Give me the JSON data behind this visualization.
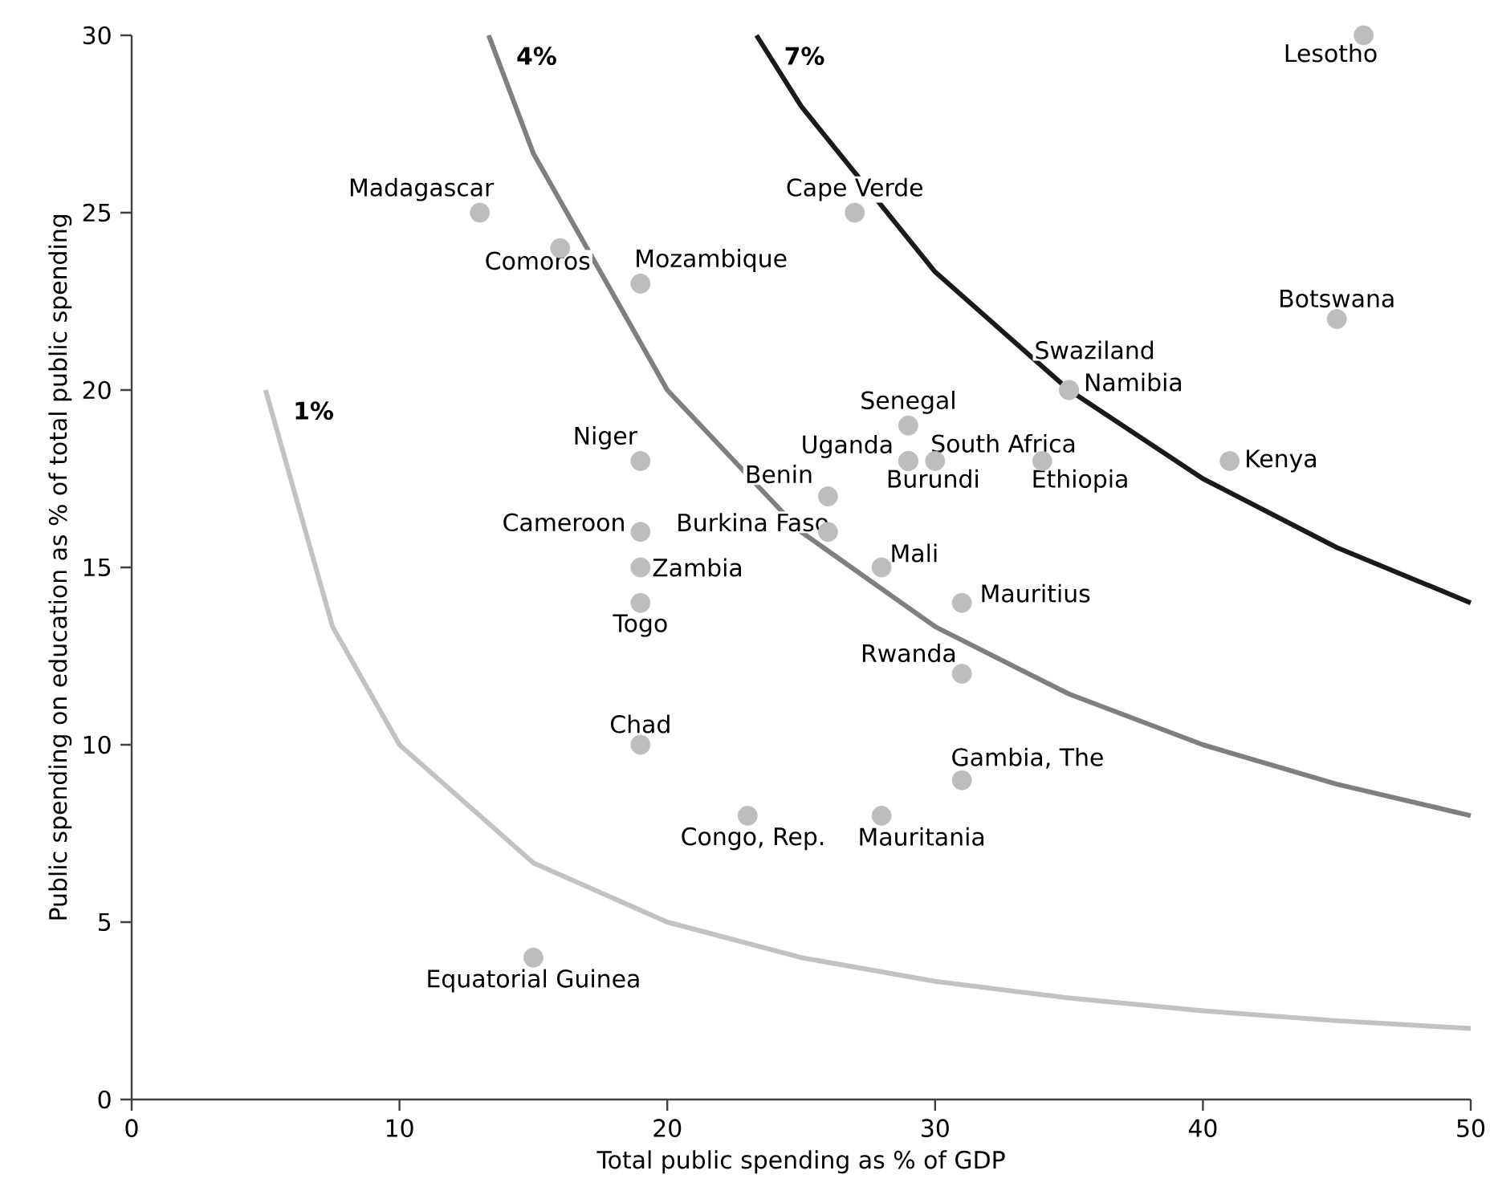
{
  "chart_data": {
    "type": "scatter",
    "xlabel": "Total public spending as % of GDP",
    "ylabel": "Public spending on education as % of total public spending",
    "xlim": [
      0,
      50
    ],
    "ylim": [
      0,
      30
    ],
    "xticks": [
      0,
      10,
      20,
      30,
      40,
      50
    ],
    "yticks": [
      0,
      5,
      10,
      15,
      20,
      25,
      30
    ],
    "series": [
      {
        "type": "line",
        "name": "1%",
        "color": "#c2c2c2",
        "marker": "none",
        "x": [
          5,
          7.5,
          10,
          15,
          20,
          25,
          30,
          35,
          40,
          45,
          50
        ],
        "values": [
          20,
          13.33,
          10,
          6.67,
          5,
          4,
          3.33,
          2.86,
          2.5,
          2.22,
          2
        ]
      },
      {
        "type": "line",
        "name": "4%",
        "color": "#7f7f7f",
        "marker": "none",
        "x": [
          13.33,
          15,
          20,
          25,
          30,
          35,
          40,
          45,
          50
        ],
        "values": [
          30,
          26.67,
          20,
          16,
          13.33,
          11.43,
          10,
          8.89,
          8
        ]
      },
      {
        "type": "line",
        "name": "7%",
        "color": "#1a1a1a",
        "marker": "none",
        "x": [
          23.33,
          25,
          30,
          35,
          40,
          45,
          50
        ],
        "values": [
          30,
          28,
          23.33,
          20,
          17.5,
          15.56,
          14
        ]
      },
      {
        "color": "#bdbdbd",
        "marker": "circle",
        "x": [
          46,
          13,
          27,
          16,
          19,
          45,
          35,
          35,
          29,
          29,
          30,
          29,
          34,
          41,
          19,
          26,
          19,
          26,
          19,
          28,
          19,
          31,
          31,
          19,
          31,
          23,
          28,
          15
        ],
        "values": [
          30,
          25,
          25,
          24,
          23,
          22,
          20,
          20,
          19,
          18,
          18,
          18,
          18,
          18,
          18,
          17,
          16,
          16,
          15,
          15,
          14,
          14,
          12,
          10,
          9,
          8,
          8,
          4
        ],
        "value_labels": [
          "Lesotho",
          "Madagascar",
          "Cape Verde",
          "Comoros",
          "Mozambique",
          "Botswana",
          "Swaziland",
          "Namibia",
          "Senegal",
          "Uganda",
          "South Africa",
          "Burundi",
          "Ethiopia",
          "Kenya",
          "Niger",
          "Benin",
          "Cameroon",
          "Burkina Faso",
          "Zambia",
          "Mali",
          "Togo",
          "Mauritius",
          "Rwanda",
          "Chad",
          "Gambia, The",
          "Congo, Rep.",
          "Mauritania",
          "Equatorial Guinea"
        ]
      }
    ]
  }
}
